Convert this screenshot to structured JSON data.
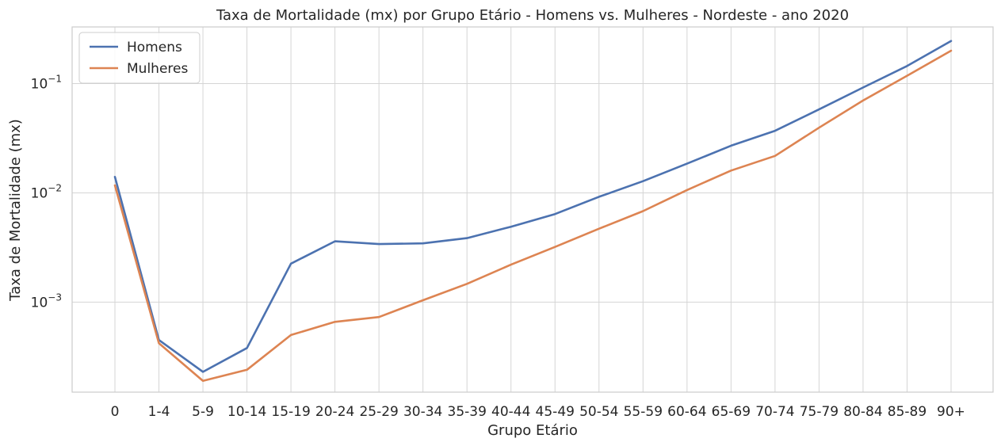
{
  "chart_data": {
    "type": "line",
    "title": "Taxa de Mortalidade (mx) por Grupo Etário - Homens vs. Mulheres - Nordeste - ano 2020",
    "xlabel": "Grupo Etário",
    "ylabel": "Taxa de Mortalidade (mx)",
    "yscale": "log",
    "ylim": [
      0.00015,
      0.33
    ],
    "ytick_values": [
      0.001,
      0.01,
      0.1
    ],
    "ytick_labels": [
      {
        "base": "10",
        "exp": "−3"
      },
      {
        "base": "10",
        "exp": "−2"
      },
      {
        "base": "10",
        "exp": "−1"
      }
    ],
    "grid": true,
    "legend_position": "top-left",
    "categories": [
      "0",
      "1-4",
      "5-9",
      "10-14",
      "15-19",
      "20-24",
      "25-29",
      "30-34",
      "35-39",
      "40-44",
      "45-49",
      "50-54",
      "55-59",
      "60-64",
      "65-69",
      "70-74",
      "75-79",
      "80-84",
      "85-89",
      "90+"
    ],
    "series": [
      {
        "name": "Homens",
        "color": "#4c72b0",
        "values": [
          0.014,
          0.00045,
          0.00023,
          0.00038,
          0.00225,
          0.0036,
          0.0034,
          0.00345,
          0.00385,
          0.0049,
          0.0064,
          0.0092,
          0.0128,
          0.0185,
          0.027,
          0.037,
          0.058,
          0.092,
          0.145,
          0.245
        ]
      },
      {
        "name": "Mulheres",
        "color": "#dd8452",
        "values": [
          0.0117,
          0.00042,
          0.00019,
          0.00024,
          0.0005,
          0.00066,
          0.00073,
          0.00104,
          0.00147,
          0.0022,
          0.0032,
          0.0047,
          0.0068,
          0.0106,
          0.016,
          0.0218,
          0.0395,
          0.07,
          0.118,
          0.2
        ]
      }
    ]
  }
}
